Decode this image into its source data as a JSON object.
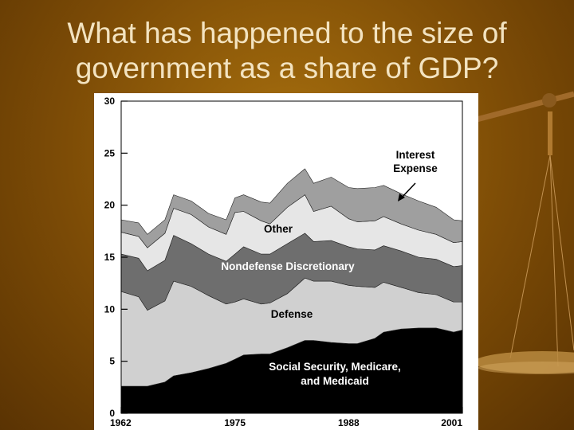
{
  "slide": {
    "title_line1": "What has happened to the size of",
    "title_line2": "government as a share of GDP?"
  },
  "colors": {
    "background": "#7d4c06",
    "title_text": "#f3e3c0",
    "social_security": "#000000",
    "defense": "#d0d0d0",
    "nondefense": "#6e6e6e",
    "other": "#e6e6e6",
    "interest": "#9f9f9f"
  },
  "chart_data": {
    "type": "area",
    "stacked": true,
    "xlim": [
      1962,
      2001
    ],
    "ylim": [
      0,
      30
    ],
    "xticks": [
      "1962",
      "1975",
      "1988",
      "2001"
    ],
    "yticks": [
      "0",
      "5",
      "10",
      "15",
      "20",
      "25",
      "30"
    ],
    "grid": false,
    "x": [
      1962,
      1964,
      1965,
      1967,
      1968,
      1970,
      1972,
      1974,
      1975,
      1976,
      1978,
      1979,
      1981,
      1983,
      1984,
      1986,
      1988,
      1989,
      1991,
      1992,
      1994,
      1996,
      1998,
      2000,
      2001
    ],
    "series": [
      {
        "name": "Social Security, Medicare, and Medicaid",
        "color": "#000000",
        "values": [
          2.6,
          2.6,
          2.6,
          3.0,
          3.6,
          3.9,
          4.3,
          4.8,
          5.2,
          5.6,
          5.7,
          5.7,
          6.3,
          7.0,
          7.0,
          6.8,
          6.7,
          6.7,
          7.2,
          7.8,
          8.1,
          8.2,
          8.2,
          7.8,
          8.0
        ]
      },
      {
        "name": "Defense",
        "color": "#d0d0d0",
        "values": [
          9.1,
          8.6,
          7.3,
          7.8,
          9.1,
          8.3,
          7.0,
          5.7,
          5.5,
          5.4,
          4.8,
          4.9,
          5.2,
          6.0,
          5.7,
          5.9,
          5.6,
          5.5,
          4.9,
          4.8,
          4.0,
          3.4,
          3.2,
          2.9,
          2.7
        ]
      },
      {
        "name": "Nondefense Discretionary",
        "color": "#6e6e6e",
        "values": [
          3.6,
          3.7,
          3.8,
          3.9,
          4.4,
          4.1,
          4.0,
          4.1,
          4.6,
          5.0,
          4.8,
          4.7,
          4.8,
          4.3,
          3.8,
          3.9,
          3.7,
          3.6,
          3.6,
          3.5,
          3.5,
          3.4,
          3.4,
          3.4,
          3.5
        ]
      },
      {
        "name": "Other",
        "color": "#e6e6e6",
        "values": [
          2.1,
          2.1,
          2.2,
          2.6,
          2.6,
          2.8,
          2.6,
          2.6,
          4.0,
          3.4,
          3.2,
          2.9,
          3.5,
          3.7,
          2.9,
          3.3,
          2.7,
          2.6,
          2.8,
          2.8,
          2.6,
          2.6,
          2.4,
          2.3,
          2.3
        ]
      },
      {
        "name": "Interest Expense",
        "color": "#9f9f9f",
        "values": [
          1.2,
          1.3,
          1.3,
          1.3,
          1.3,
          1.3,
          1.3,
          1.4,
          1.4,
          1.6,
          1.8,
          2.0,
          2.3,
          2.5,
          2.7,
          2.8,
          3.0,
          3.2,
          3.2,
          3.0,
          2.9,
          2.8,
          2.6,
          2.2,
          2.0
        ]
      }
    ],
    "labels": {
      "interest": [
        "Interest",
        "Expense"
      ],
      "other": "Other",
      "nondefense": "Nondefense Discretionary",
      "defense": "Defense",
      "ssm": [
        "Social Security, Medicare,",
        "and Medicaid"
      ]
    }
  }
}
